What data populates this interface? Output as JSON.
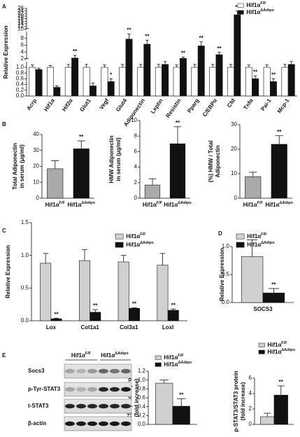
{
  "chart_data": [
    {
      "type": "bar",
      "panel": "A",
      "ylabel": [
        "Relative Expression"
      ],
      "label_rotate": true,
      "categories": [
        "Acrp",
        "Hif1α",
        "Hif2α",
        "Glut1",
        "Vegf",
        "Glut4",
        "Adiponectin",
        "Leptin",
        "Resistin",
        "Pparg",
        "C/EBPα",
        "Cfd",
        "Tnfα",
        "Pai-1",
        "Mcp-1"
      ],
      "ylim": [
        0,
        26
      ],
      "ysegments": [
        [
          0,
          1.2
        ],
        [
          2,
          10
        ],
        [
          10,
          26
        ]
      ],
      "yticks": [
        {
          "value": 0,
          "label": "0.0"
        },
        0.2,
        0.4,
        0.6,
        0.8,
        {
          "value": 1,
          "label": "1.0"
        },
        2,
        4,
        6,
        8,
        10,
        12,
        14,
        16,
        18,
        20,
        22,
        24,
        26
      ],
      "legend": "upper right",
      "series": [
        {
          "name": "Hif1α",
          "name_sup": "F/F",
          "color": "#ffffff",
          "values": [
            1.0,
            1.0,
            1.0,
            1.0,
            1.0,
            1.0,
            1.0,
            1.0,
            1.0,
            1.0,
            1.0,
            1.0,
            1.0,
            1.0,
            1.0
          ],
          "errors": [
            0.08,
            0.06,
            0.1,
            0.1,
            0.08,
            0.1,
            0.1,
            0.1,
            0.08,
            0.1,
            0.1,
            0.1,
            0.08,
            0.08,
            0.1
          ]
        },
        {
          "name": "Hif1α",
          "name_sup": "ΔAdipo",
          "color": "#111111",
          "values": [
            0.92,
            0.3,
            2.2,
            0.35,
            0.5,
            7.8,
            6.3,
            1.1,
            2.1,
            5.8,
            3.2,
            21,
            0.6,
            0.5,
            1.1
          ],
          "errors": [
            0.05,
            0.05,
            0.8,
            0.1,
            0.1,
            1.5,
            1.2,
            0.2,
            0.4,
            1.2,
            0.7,
            3,
            0.1,
            0.1,
            0.2
          ],
          "significance": [
            null,
            null,
            "**",
            null,
            "*",
            "**",
            "**",
            null,
            "**",
            "**",
            "**",
            "**",
            "**",
            "**",
            null
          ]
        }
      ]
    },
    {
      "type": "bar",
      "panel": "B",
      "ylabel": [
        "Total Adiponectin",
        "in serum (μg/ml)"
      ],
      "categories": [
        "Hif1α",
        "Hif1α"
      ],
      "category_superscripts": [
        "F/F",
        "ΔAdipo"
      ],
      "values": [
        18.5,
        31
      ],
      "errors": [
        5,
        5
      ],
      "colors": [
        "#aaaaaa",
        "#111111"
      ],
      "significance": [
        null,
        "**"
      ],
      "ylim": [
        0,
        40
      ],
      "yticks": [
        0,
        10,
        20,
        30,
        40
      ]
    },
    {
      "type": "bar",
      "ylabel": [
        "HMW Adiponectin",
        "in serum (μg/ml)"
      ],
      "categories": [
        "Hif1α",
        "Hif1α"
      ],
      "category_superscripts": [
        "F/F",
        "ΔAdipo"
      ],
      "values": [
        1.7,
        7
      ],
      "errors": [
        0.8,
        2.2
      ],
      "colors": [
        "#aaaaaa",
        "#111111"
      ],
      "significance": [
        null,
        "**"
      ],
      "ylim": [
        0,
        10
      ],
      "yticks": [
        0,
        2,
        4,
        6,
        8,
        10
      ]
    },
    {
      "type": "bar",
      "ylabel": [
        "(%) HMW / Total",
        "Adiponectin"
      ],
      "categories": [
        "Hif1α",
        "Hif1α"
      ],
      "category_superscripts": [
        "F/F",
        "ΔAdipo"
      ],
      "values": [
        8.8,
        22
      ],
      "errors": [
        1.8,
        3.5
      ],
      "colors": [
        "#aaaaaa",
        "#111111"
      ],
      "significance": [
        null,
        "**"
      ],
      "ylim": [
        0,
        30
      ],
      "yticks": [
        0,
        10,
        20,
        30
      ]
    },
    {
      "type": "bar",
      "panel": "C",
      "ylabel": [
        "Relative Expression"
      ],
      "categories": [
        "Lox",
        "Col1a1",
        "Col3a1",
        "Loxl"
      ],
      "ylim": [
        0,
        1.5
      ],
      "yticks": [
        {
          "value": 0,
          "label": "0.0"
        },
        0.5,
        {
          "value": 1,
          "label": "1.0"
        },
        1.5
      ],
      "legend": "upper right",
      "series": [
        {
          "name": "Hif1α",
          "name_sup": "F/F",
          "color": "#d0d0d0",
          "values": [
            0.88,
            0.92,
            0.9,
            0.85
          ],
          "errors": [
            0.15,
            0.17,
            0.1,
            0.18
          ]
        },
        {
          "name": "Hif1α",
          "name_sup": "ΔAdipo",
          "color": "#111111",
          "values": [
            0.03,
            0.13,
            0.19,
            0.16
          ],
          "errors": [
            0.01,
            0.04,
            0.01,
            0.02
          ],
          "significance": [
            "**",
            "**",
            "**",
            "**"
          ]
        }
      ]
    },
    {
      "type": "bar",
      "panel": "D",
      "ylabel": [
        "Relative Expression"
      ],
      "categories": [
        "SOCS3"
      ],
      "ylim": [
        0,
        1
      ],
      "yticks": [
        {
          "value": 0,
          "label": "0.0"
        },
        0.5,
        {
          "value": 1,
          "label": "1.0"
        }
      ],
      "legend": "upper right",
      "series": [
        {
          "name": "Hif1α",
          "name_sup": "F/F",
          "color": "#d0d0d0",
          "values": [
            0.82
          ],
          "errors": [
            0.3
          ]
        },
        {
          "name": "Hif1α",
          "name_sup": "ΔAdipo",
          "color": "#111111",
          "values": [
            0.17
          ],
          "errors": [
            0.08
          ],
          "significance": [
            "**"
          ]
        }
      ]
    },
    {
      "type": "bar",
      "ylabel": [
        "SOCS3/β-actin protein",
        "(fold increase)"
      ],
      "categories": [
        null
      ],
      "ylim": [
        0,
        1.2
      ],
      "yticks": [
        {
          "value": 0,
          "label": "0.0"
        },
        0.2,
        0.4,
        0.6,
        0.8,
        {
          "value": 1,
          "label": "1.0"
        },
        1.2
      ],
      "legend": "top",
      "series": [
        {
          "name": "Hif1α",
          "name_sup": "F/F",
          "color": "#d0d0d0",
          "values": [
            0.93
          ],
          "errors": [
            0.07
          ]
        },
        {
          "name": "Hif1α",
          "name_sup": "ΔAdipo",
          "color": "#111111",
          "values": [
            0.41
          ],
          "errors": [
            0.17
          ],
          "significance": [
            "**"
          ]
        }
      ]
    },
    {
      "type": "bar",
      "ylabel": [
        "p-STAT3/STAT3 protein",
        "(fold increase)"
      ],
      "categories": [
        null
      ],
      "ylim": [
        0,
        6
      ],
      "yticks": [
        0,
        2,
        4,
        6
      ],
      "legend": "top",
      "series": [
        {
          "name": "Hif1α",
          "name_sup": "F/F",
          "color": "#d0d0d0",
          "values": [
            1.0
          ],
          "errors": [
            0.45
          ]
        },
        {
          "name": "Hif1α",
          "name_sup": "ΔAdipo",
          "color": "#111111",
          "values": [
            3.8
          ],
          "errors": [
            1.2
          ],
          "significance": [
            "**"
          ]
        }
      ]
    }
  ],
  "blot": {
    "panel": "E",
    "groups": [
      {
        "base": "Hif1α",
        "sup": "F/F"
      },
      {
        "base": "Hif1α",
        "sup": "ΔAdipo"
      }
    ],
    "rows": [
      "Socs3",
      "p-Tyr-STAT3",
      "t-STAT3",
      "β-actin"
    ]
  }
}
